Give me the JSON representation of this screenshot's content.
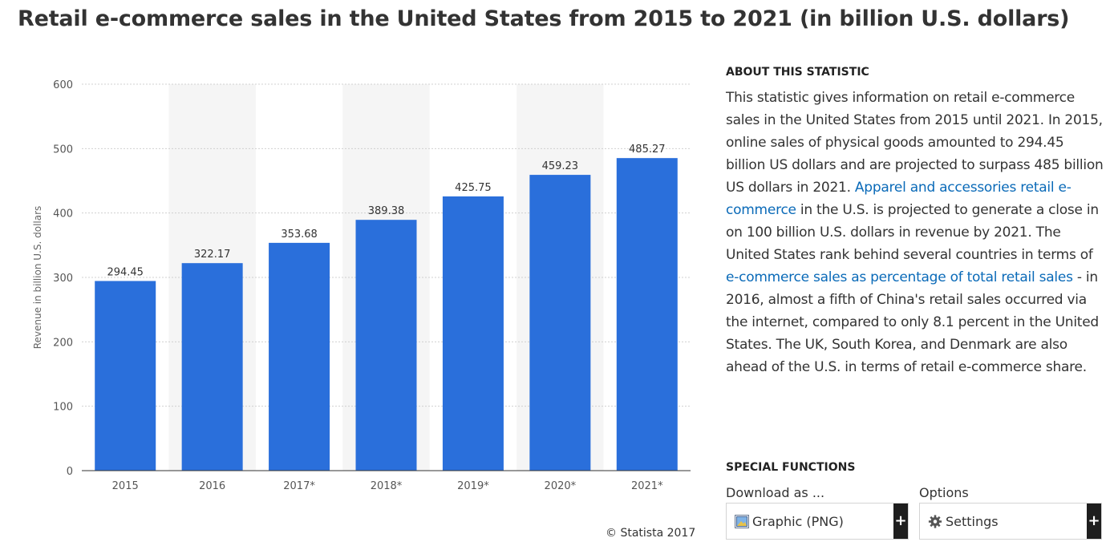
{
  "title": "Retail e-commerce sales in the United States from 2015 to 2021 (in billion U.S. dollars)",
  "colors": {
    "bar": "#2a6fdb",
    "band": "#f5f5f5",
    "grid": "#d0d0d0",
    "link": "#0a6ab8",
    "axis_text": "#555555"
  },
  "chart_data": {
    "type": "bar",
    "categories": [
      "2015",
      "2016",
      "2017*",
      "2018*",
      "2019*",
      "2020*",
      "2021*"
    ],
    "values": [
      294.45,
      322.17,
      353.68,
      389.38,
      425.75,
      459.23,
      485.27
    ],
    "value_labels": [
      "294.45",
      "322.17",
      "353.68",
      "389.38",
      "425.75",
      "459.23",
      "485.27"
    ],
    "yticks": [
      0,
      100,
      200,
      300,
      400,
      500,
      600
    ],
    "ylim": [
      0,
      600
    ],
    "ylabel": "Revenue in billion U.S. dollars",
    "xlabel": "",
    "grid": true,
    "alternating_bands": [
      1,
      3,
      5
    ]
  },
  "credit": "© Statista 2017",
  "about": {
    "heading": "ABOUT THIS STATISTIC",
    "text_1": "This statistic gives information on retail e-commerce sales in the United States from 2015 until 2021. In 2015, online sales of physical goods amounted to 294.45 billion US dollars and are projected to surpass 485 billion US dollars in 2021. ",
    "link_1": "Apparel and accessories retail e-commerce",
    "text_2": " in the U.S. is projected to generate a close in on 100 billion U.S. dollars in revenue by 2021. The United States rank behind several countries in terms of ",
    "link_2": "e-commerce sales as percentage of total retail sales",
    "text_3": " - in 2016, almost a fifth of China's retail sales occurred via the internet, compared to only 8.1 percent in the United States. The UK, South Korea, and Denmark are also ahead of the U.S. in terms of retail e-commerce share."
  },
  "special": {
    "heading": "SPECIAL FUNCTIONS",
    "download_label": "Download as ...",
    "options_label": "Options",
    "download_value": "Graphic (PNG)",
    "options_value": "Settings",
    "plus": "+",
    "download_icon": "image-icon",
    "options_icon": "gear-icon"
  }
}
